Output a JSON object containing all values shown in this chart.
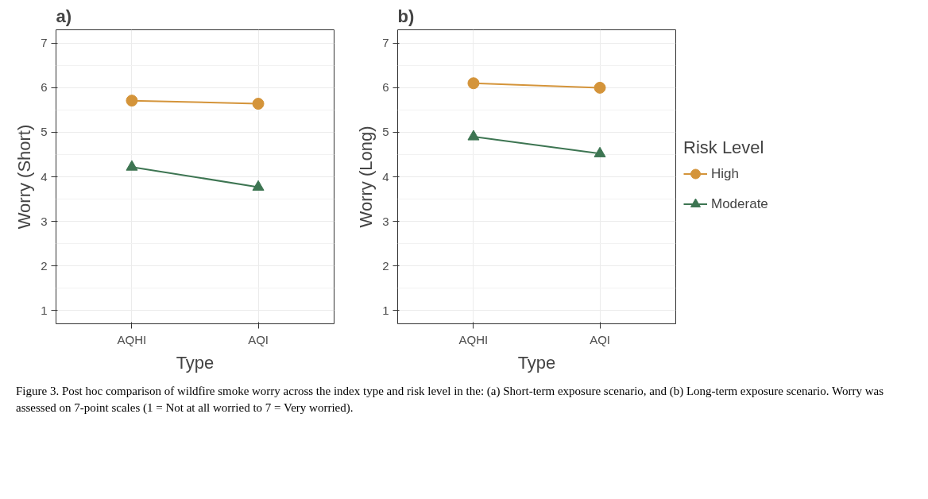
{
  "chart_data": [
    {
      "type": "line",
      "title": "a)",
      "xlabel": "Type",
      "ylabel": "Worry (Short)",
      "categories": [
        "AQHI",
        "AQI"
      ],
      "ylim": [
        0.7,
        7.3
      ],
      "yticks": [
        1,
        2,
        3,
        4,
        5,
        6,
        7
      ],
      "grid": true,
      "legend": false,
      "series": [
        {
          "color": "#d4943a",
          "marker": "circle",
          "values": [
            5.71,
            5.64
          ]
        },
        {
          "color": "#3d7552",
          "marker": "triangle",
          "values": [
            4.22,
            3.77
          ]
        }
      ]
    },
    {
      "type": "line",
      "title": "b)",
      "xlabel": "Type",
      "ylabel": "Worry (Long)",
      "categories": [
        "AQHI",
        "AQI"
      ],
      "ylim": [
        0.7,
        7.3
      ],
      "yticks": [
        1,
        2,
        3,
        4,
        5,
        6,
        7
      ],
      "grid": true,
      "legend": "right",
      "legend_title": "Risk Level",
      "annotations": [
        "Figure 3. Post hoc comparison of wildfire smoke worry across the index type and risk level in the: (a) Short-term exposure scenario, and (b) Long-term exposure scenario. Worry was assessed on 7-point scales (1 = Not at all worried to 7 = Very worried)."
      ],
      "series": [
        {
          "name": "High",
          "color": "#d4943a",
          "marker": "circle",
          "values": [
            6.1,
            6.0
          ]
        },
        {
          "name": "Moderate",
          "color": "#3d7552",
          "marker": "triangle",
          "values": [
            4.9,
            4.52
          ]
        }
      ]
    }
  ]
}
